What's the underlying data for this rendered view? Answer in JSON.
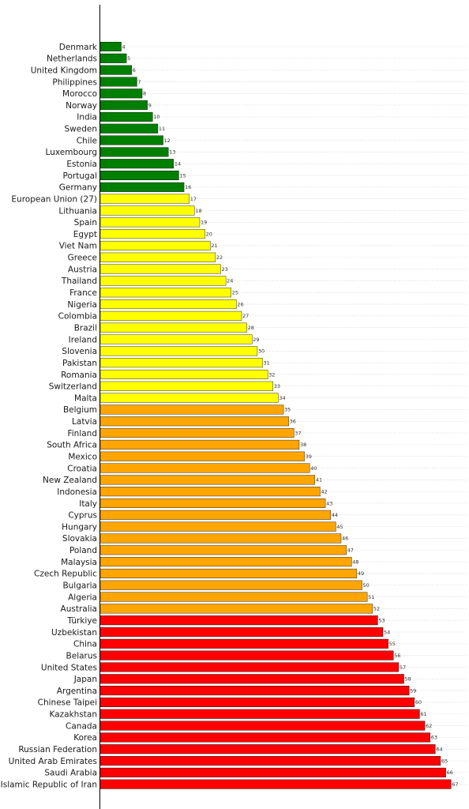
{
  "chart_data": {
    "type": "bar",
    "orientation": "horizontal",
    "title": "",
    "xlabel": "",
    "ylabel": "",
    "grid": true,
    "legend": "none",
    "categories": [
      "Denmark",
      "Netherlands",
      "United Kingdom",
      "Philippines",
      "Morocco",
      "Norway",
      "India",
      "Sweden",
      "Chile",
      "Luxembourg",
      "Estonia",
      "Portugal",
      "Germany",
      "European Union (27)",
      "Lithuania",
      "Spain",
      "Egypt",
      "Viet Nam",
      "Greece",
      "Austria",
      "Thailand",
      "France",
      "Nigeria",
      "Colombia",
      "Brazil",
      "Ireland",
      "Slovenia",
      "Pakistan",
      "Romania",
      "Switzerland",
      "Malta",
      "Belgium",
      "Latvia",
      "Finland",
      "South Africa",
      "Mexico",
      "Croatia",
      "New Zealand",
      "Indonesia",
      "Italy",
      "Cyprus",
      "Hungary",
      "Slovakia",
      "Poland",
      "Malaysia",
      "Czech Republic",
      "Bulgaria",
      "Algeria",
      "Australia",
      "Türkiye",
      "Uzbekistan",
      "China",
      "Belarus",
      "United States",
      "Japan",
      "Argentina",
      "Chinese Taipei",
      "Kazakhstan",
      "Canada",
      "Korea",
      "Russian Federation",
      "United Arab Emirates",
      "Saudi Arabia",
      "Islamic Republic of Iran"
    ],
    "values": [
      4,
      5,
      6,
      7,
      8,
      9,
      10,
      11,
      12,
      13,
      14,
      15,
      16,
      17,
      18,
      19,
      20,
      21,
      22,
      23,
      24,
      25,
      26,
      27,
      28,
      29,
      30,
      31,
      32,
      33,
      34,
      35,
      36,
      37,
      38,
      39,
      40,
      41,
      42,
      43,
      44,
      45,
      46,
      47,
      48,
      49,
      50,
      51,
      52,
      53,
      54,
      55,
      56,
      57,
      58,
      59,
      60,
      61,
      62,
      63,
      64,
      65,
      66,
      67
    ],
    "xlim": [
      0,
      70
    ],
    "color_bands": [
      {
        "max": 16,
        "color": "#007f00"
      },
      {
        "max": 34,
        "color": "#ffff00"
      },
      {
        "max": 52,
        "color": "#ffa500"
      },
      {
        "max": 67,
        "color": "#ff0000"
      }
    ],
    "bar_edge_color": "#000000",
    "grid_color": "#d9d9d9"
  }
}
